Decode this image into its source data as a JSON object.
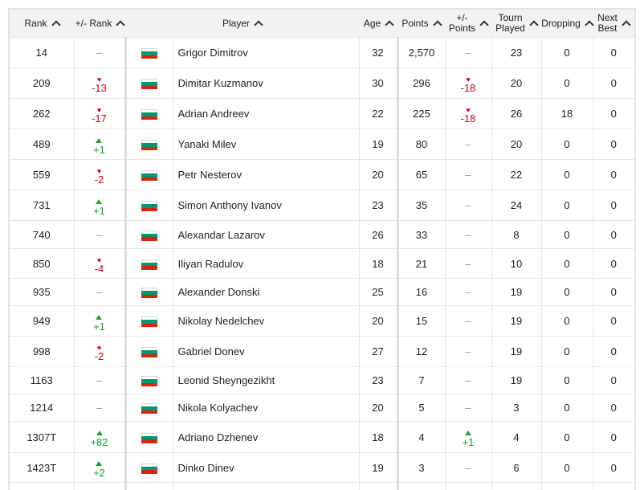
{
  "columns": [
    {
      "label": "Rank"
    },
    {
      "label": "+/- Rank"
    },
    {
      "label": "Player"
    },
    {
      "label": "Age"
    },
    {
      "label": "Points"
    },
    {
      "label": "+/-\nPoints"
    },
    {
      "label": "Tourn\nPlayed"
    },
    {
      "label": "Dropping"
    },
    {
      "label": "Next\nBest"
    }
  ],
  "colors": {
    "up": "#1a9e2c",
    "down": "#d0021b",
    "header_bg": "#f2f2f2"
  },
  "flag_icon": "bulgaria-flag-icon",
  "rows": [
    {
      "rank": "14",
      "rank_change": "–",
      "rank_dir": "none",
      "player": "Grigor Dimitrov",
      "age": "32",
      "points": "2,570",
      "points_change": "–",
      "points_dir": "none",
      "tourn": "23",
      "dropping": "0",
      "next_best": "0"
    },
    {
      "rank": "209",
      "rank_change": "-13",
      "rank_dir": "down",
      "player": "Dimitar Kuzmanov",
      "age": "30",
      "points": "296",
      "points_change": "-18",
      "points_dir": "down",
      "tourn": "20",
      "dropping": "0",
      "next_best": "0"
    },
    {
      "rank": "262",
      "rank_change": "-17",
      "rank_dir": "down",
      "player": "Adrian Andreev",
      "age": "22",
      "points": "225",
      "points_change": "-18",
      "points_dir": "down",
      "tourn": "26",
      "dropping": "18",
      "next_best": "0"
    },
    {
      "rank": "489",
      "rank_change": "+1",
      "rank_dir": "up",
      "player": "Yanaki Milev",
      "age": "19",
      "points": "80",
      "points_change": "–",
      "points_dir": "none",
      "tourn": "20",
      "dropping": "0",
      "next_best": "0"
    },
    {
      "rank": "559",
      "rank_change": "-2",
      "rank_dir": "down",
      "player": "Petr Nesterov",
      "age": "20",
      "points": "65",
      "points_change": "–",
      "points_dir": "none",
      "tourn": "22",
      "dropping": "0",
      "next_best": "0"
    },
    {
      "rank": "731",
      "rank_change": "+1",
      "rank_dir": "up",
      "player": "Simon Anthony Ivanov",
      "age": "23",
      "points": "35",
      "points_change": "–",
      "points_dir": "none",
      "tourn": "24",
      "dropping": "0",
      "next_best": "0"
    },
    {
      "rank": "740",
      "rank_change": "–",
      "rank_dir": "none",
      "player": "Alexandar Lazarov",
      "age": "26",
      "points": "33",
      "points_change": "–",
      "points_dir": "none",
      "tourn": "8",
      "dropping": "0",
      "next_best": "0"
    },
    {
      "rank": "850",
      "rank_change": "-4",
      "rank_dir": "down",
      "player": "Iliyan Radulov",
      "age": "18",
      "points": "21",
      "points_change": "–",
      "points_dir": "none",
      "tourn": "10",
      "dropping": "0",
      "next_best": "0"
    },
    {
      "rank": "935",
      "rank_change": "–",
      "rank_dir": "none",
      "player": "Alexander Donski",
      "age": "25",
      "points": "16",
      "points_change": "–",
      "points_dir": "none",
      "tourn": "19",
      "dropping": "0",
      "next_best": "0"
    },
    {
      "rank": "949",
      "rank_change": "+1",
      "rank_dir": "up",
      "player": "Nikolay Nedelchev",
      "age": "20",
      "points": "15",
      "points_change": "–",
      "points_dir": "none",
      "tourn": "19",
      "dropping": "0",
      "next_best": "0"
    },
    {
      "rank": "998",
      "rank_change": "-2",
      "rank_dir": "down",
      "player": "Gabriel Donev",
      "age": "27",
      "points": "12",
      "points_change": "–",
      "points_dir": "none",
      "tourn": "19",
      "dropping": "0",
      "next_best": "0"
    },
    {
      "rank": "1163",
      "rank_change": "–",
      "rank_dir": "none",
      "player": "Leonid Sheyngezikht",
      "age": "23",
      "points": "7",
      "points_change": "–",
      "points_dir": "none",
      "tourn": "19",
      "dropping": "0",
      "next_best": "0"
    },
    {
      "rank": "1214",
      "rank_change": "–",
      "rank_dir": "none",
      "player": "Nikola Kolyachev",
      "age": "20",
      "points": "5",
      "points_change": "–",
      "points_dir": "none",
      "tourn": "3",
      "dropping": "0",
      "next_best": "0"
    },
    {
      "rank": "1307T",
      "rank_change": "+82",
      "rank_dir": "up",
      "player": "Adriano Dzhenev",
      "age": "18",
      "points": "4",
      "points_change": "+1",
      "points_dir": "up",
      "tourn": "4",
      "dropping": "0",
      "next_best": "0"
    },
    {
      "rank": "1423T",
      "rank_change": "+2",
      "rank_dir": "up",
      "player": "Dinko Dinev",
      "age": "19",
      "points": "3",
      "points_change": "–",
      "points_dir": "none",
      "tourn": "6",
      "dropping": "0",
      "next_best": "0"
    },
    {
      "rank": "",
      "rank_change": "",
      "rank_dir": "none",
      "player": "",
      "age": "",
      "points": "",
      "points_change": "",
      "points_dir": "none",
      "tourn": "",
      "dropping": "",
      "next_best": ""
    }
  ]
}
